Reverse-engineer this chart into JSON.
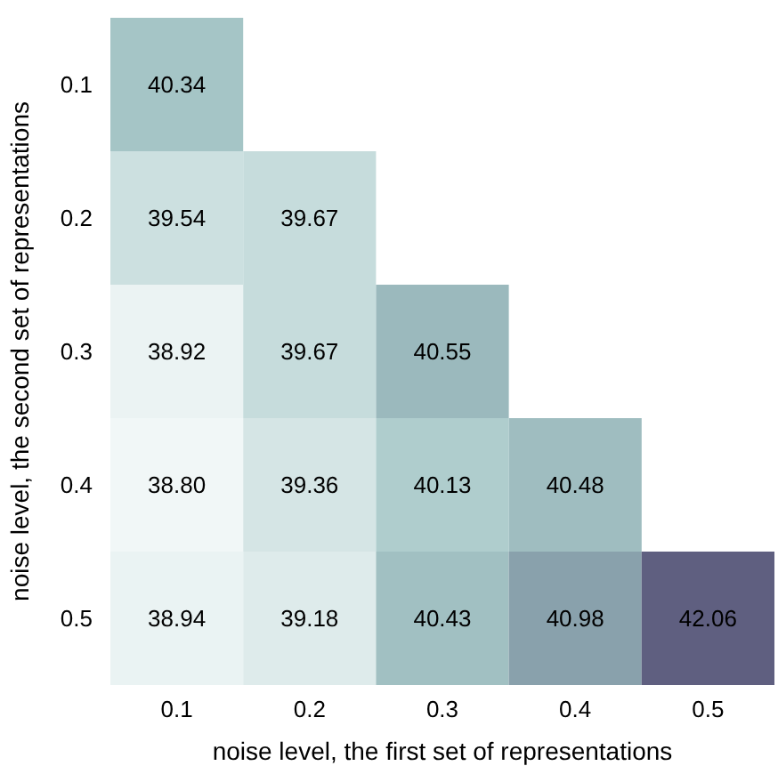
{
  "chart_data": {
    "type": "heatmap",
    "xlabel": "noise level, the first set of representations",
    "ylabel": "noise level, the second set of representations",
    "categories": [
      "0.1",
      "0.2",
      "0.3",
      "0.4",
      "0.5"
    ],
    "y_categories": [
      "0.1",
      "0.2",
      "0.3",
      "0.4",
      "0.5"
    ],
    "cells": [
      [
        40.34,
        null,
        null,
        null,
        null
      ],
      [
        39.54,
        39.67,
        null,
        null,
        null
      ],
      [
        38.92,
        39.67,
        40.55,
        null,
        null
      ],
      [
        38.8,
        39.36,
        40.13,
        40.48,
        null
      ],
      [
        38.94,
        39.18,
        40.43,
        40.98,
        42.06
      ]
    ],
    "cell_labels": [
      [
        "40.34",
        null,
        null,
        null,
        null
      ],
      [
        "39.54",
        "39.67",
        null,
        null,
        null
      ],
      [
        "38.92",
        "39.67",
        "40.55",
        null,
        null
      ],
      [
        "38.80",
        "39.36",
        "40.13",
        "40.48",
        null
      ],
      [
        "38.94",
        "39.18",
        "40.43",
        "40.98",
        "42.06"
      ]
    ],
    "data_labels": true
  }
}
